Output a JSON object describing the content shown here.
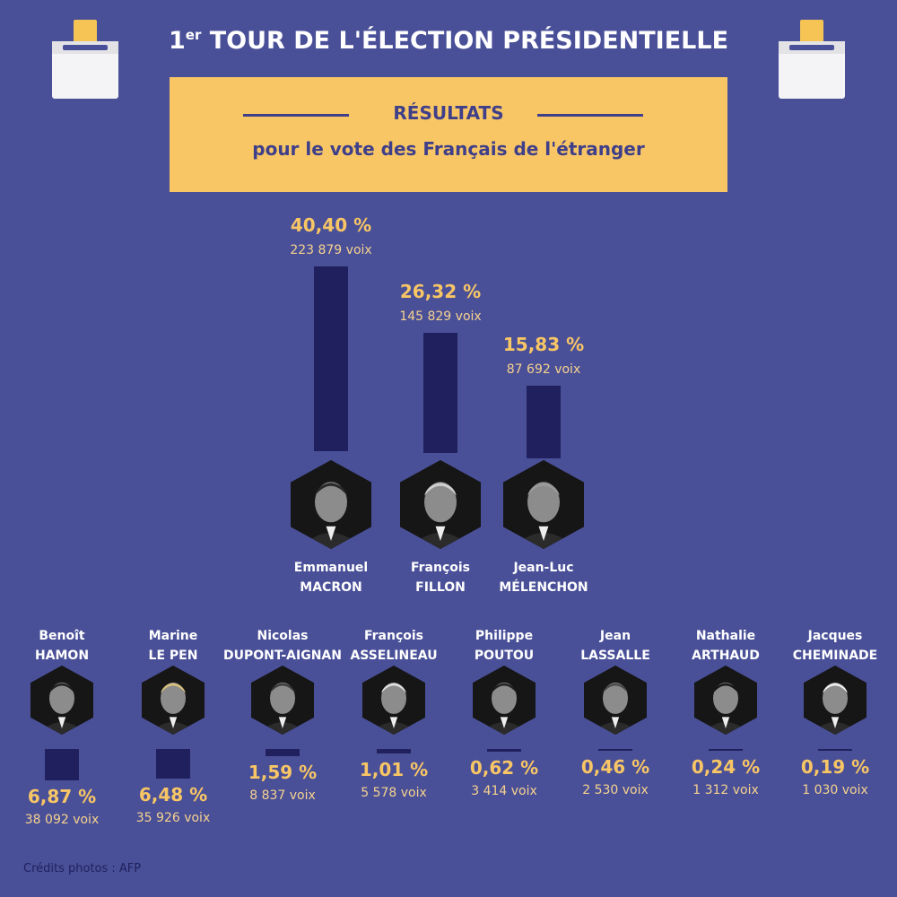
{
  "header": {
    "title_prefix": "1",
    "title_sup": "er",
    "title": "TOUR DE L'ÉLECTION PRÉSIDENTIELLE"
  },
  "banner": {
    "heading": "RÉSULTATS",
    "subheading": "pour le vote des Français de l'étranger"
  },
  "colors": {
    "background": "#4a5098",
    "bar": "#20205e",
    "accent": "#f8c665",
    "banner": "#f8c665"
  },
  "chart_data": {
    "type": "bar",
    "categories": [
      "Emmanuel MACRON",
      "François FILLON",
      "Jean-Luc MÉLENCHON",
      "Benoît HAMON",
      "Marine LE PEN",
      "Nicolas DUPONT-AIGNAN",
      "François ASSELINEAU",
      "Philippe POUTOU",
      "Jean LASSALLE",
      "Nathalie ARTHAUD",
      "Jacques CHEMINADE"
    ],
    "values": [
      40.4,
      26.32,
      15.83,
      6.87,
      6.48,
      1.59,
      1.01,
      0.62,
      0.46,
      0.24,
      0.19
    ],
    "candidates": [
      {
        "first": "Emmanuel",
        "last": "MACRON",
        "pct": "40,40 %",
        "votes": "223 879 voix",
        "value": 40.4,
        "votes_n": 223879
      },
      {
        "first": "François",
        "last": "FILLON",
        "pct": "26,32 %",
        "votes": "145 829 voix",
        "value": 26.32,
        "votes_n": 145829
      },
      {
        "first": "Jean-Luc",
        "last": "MÉLENCHON",
        "pct": "15,83 %",
        "votes": "87 692 voix",
        "value": 15.83,
        "votes_n": 87692
      },
      {
        "first": "Benoît",
        "last": "HAMON",
        "pct": "6,87 %",
        "votes": "38 092 voix",
        "value": 6.87,
        "votes_n": 38092
      },
      {
        "first": "Marine",
        "last": "LE PEN",
        "pct": "6,48 %",
        "votes": "35 926 voix",
        "value": 6.48,
        "votes_n": 35926
      },
      {
        "first": "Nicolas",
        "last": "DUPONT-AIGNAN",
        "pct": "1,59 %",
        "votes": "8 837 voix",
        "value": 1.59,
        "votes_n": 8837
      },
      {
        "first": "François",
        "last": "ASSELINEAU",
        "pct": "1,01 %",
        "votes": "5 578 voix",
        "value": 1.01,
        "votes_n": 5578
      },
      {
        "first": "Philippe",
        "last": "POUTOU",
        "pct": "0,62 %",
        "votes": "3 414 voix",
        "value": 0.62,
        "votes_n": 3414
      },
      {
        "first": "Jean",
        "last": "LASSALLE",
        "pct": "0,46 %",
        "votes": "2 530 voix",
        "value": 0.46,
        "votes_n": 2530
      },
      {
        "first": "Nathalie",
        "last": "ARTHAUD",
        "pct": "0,24 %",
        "votes": "1 312 voix",
        "value": 0.24,
        "votes_n": 1312
      },
      {
        "first": "Jacques",
        "last": "CHEMINADE",
        "pct": "0,19 %",
        "votes": "1 030 voix",
        "value": 0.19,
        "votes_n": 1030
      }
    ]
  },
  "footer": {
    "credits": "Crédits photos : AFP"
  }
}
